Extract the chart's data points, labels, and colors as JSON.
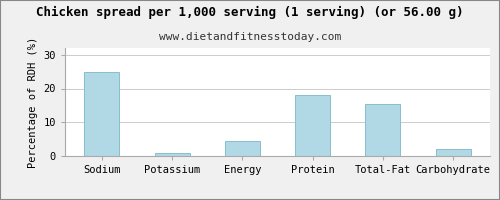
{
  "title": "Chicken spread per 1,000 serving (1 serving) (or 56.00 g)",
  "subtitle": "www.dietandfitnesstoday.com",
  "categories": [
    "Sodium",
    "Potassium",
    "Energy",
    "Protein",
    "Total-Fat",
    "Carbohydrate"
  ],
  "values": [
    25.0,
    1.0,
    4.5,
    18.0,
    15.5,
    2.0
  ],
  "bar_color": "#b0d8e5",
  "bar_edge_color": "#88bece",
  "ylabel": "Percentage of RDH (%)",
  "ylim": [
    0,
    32
  ],
  "yticks": [
    0,
    10,
    20,
    30
  ],
  "background_color": "#f0f0f0",
  "plot_bg_color": "#ffffff",
  "grid_color": "#cccccc",
  "title_fontsize": 9.0,
  "subtitle_fontsize": 8.0,
  "ylabel_fontsize": 7.5,
  "tick_fontsize": 7.5,
  "border_color": "#aaaaaa"
}
